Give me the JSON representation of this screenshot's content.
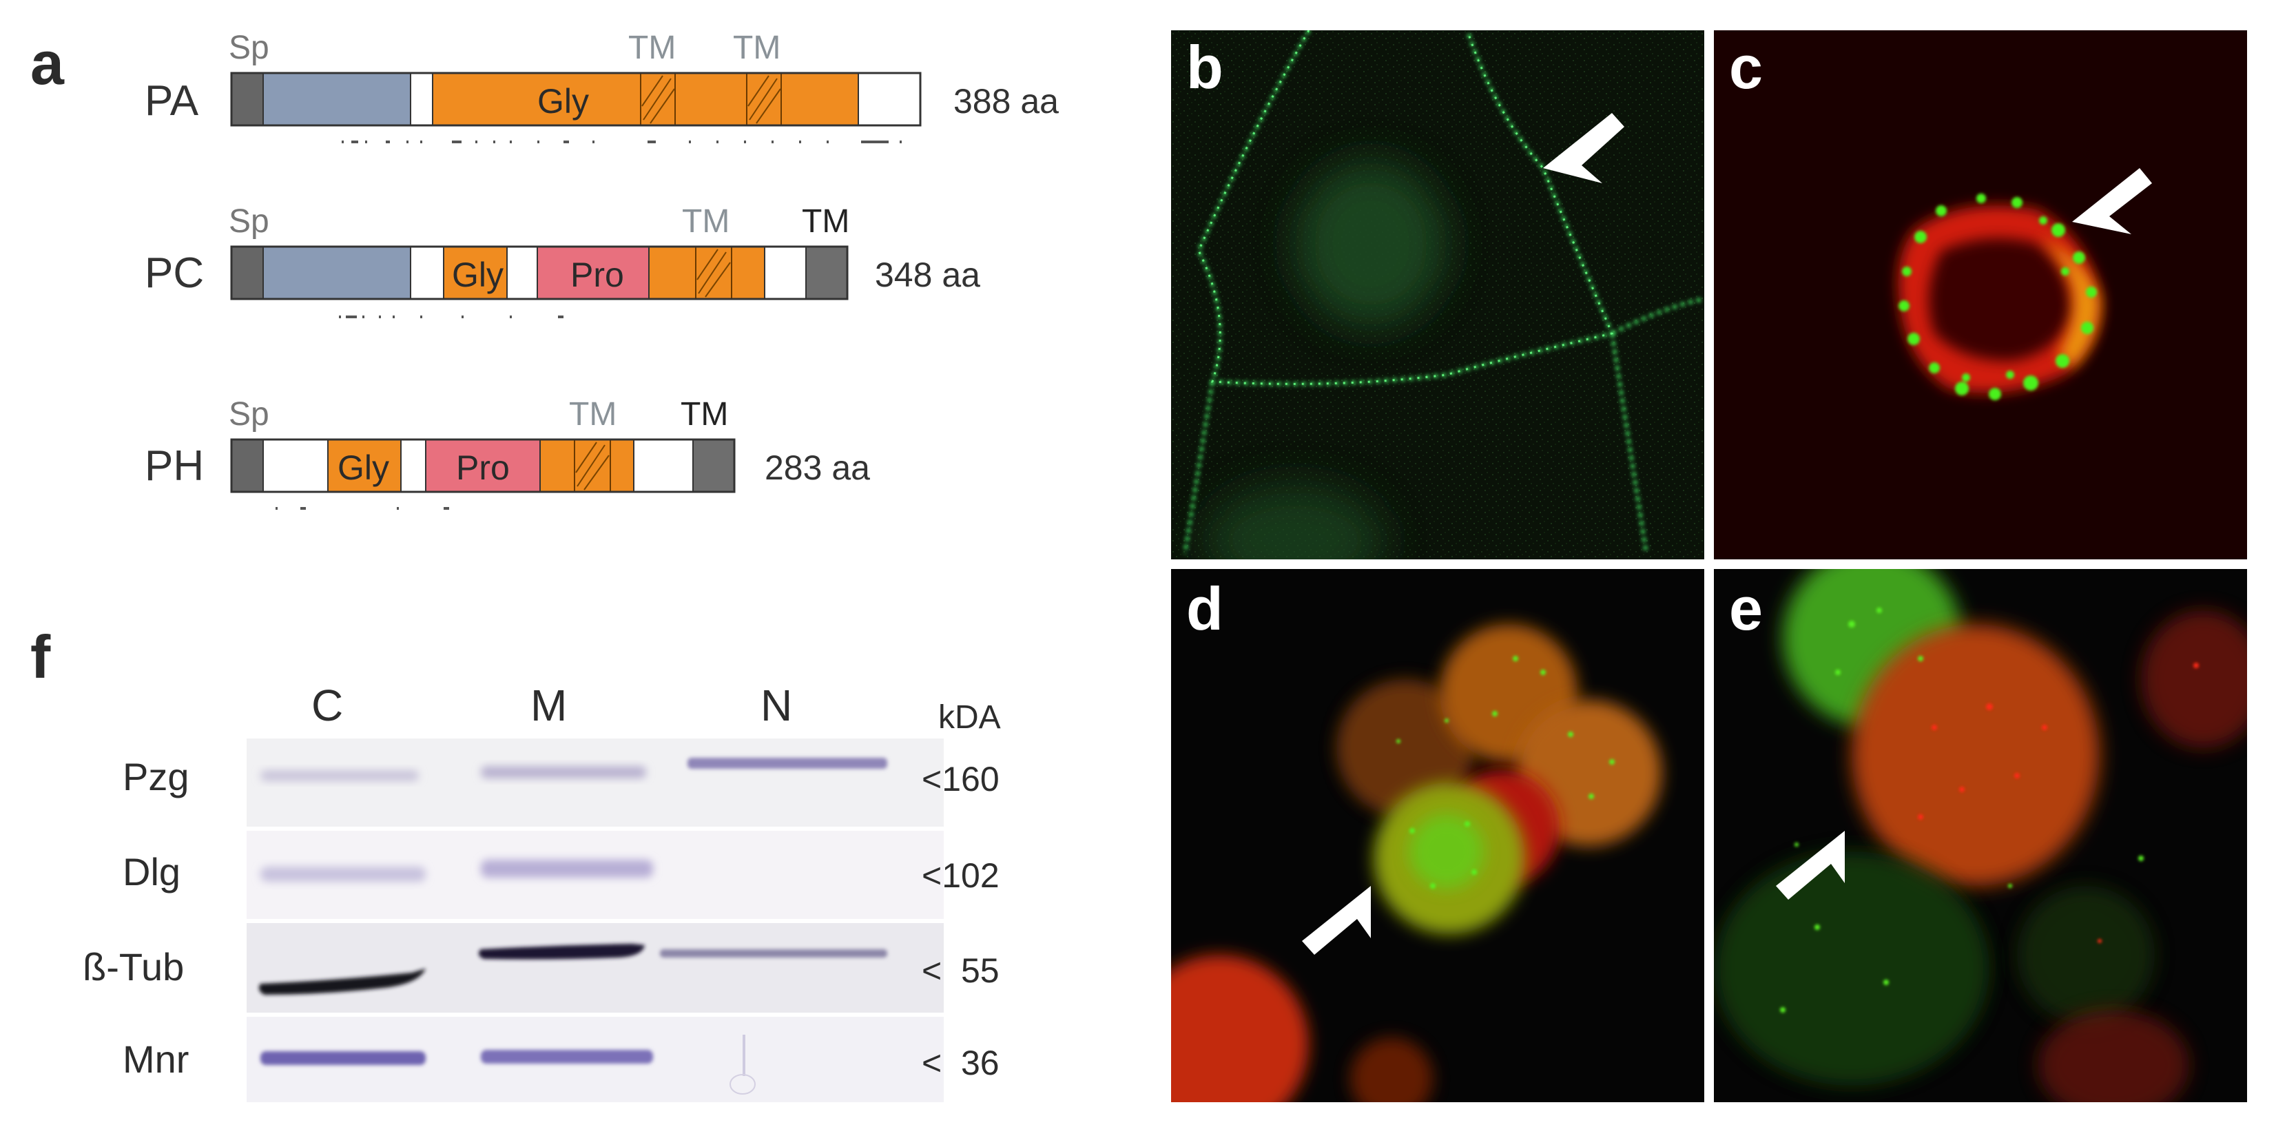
{
  "panel_a": {
    "letter": "a",
    "proteins": [
      {
        "name": "PA",
        "sp": "Sp",
        "tm_labels": [
          "TM",
          "TM"
        ],
        "segments": [
          "Gly"
        ],
        "length": "388 aa"
      },
      {
        "name": "PC",
        "sp": "Sp",
        "tm_labels": [
          "TM",
          "TM"
        ],
        "segments": [
          "Gly",
          "Pro"
        ],
        "length": "348 aa"
      },
      {
        "name": "PH",
        "sp": "Sp",
        "tm_labels": [
          "TM",
          "TM"
        ],
        "segments": [
          "Gly",
          "Pro"
        ],
        "length": "283 aa"
      }
    ],
    "colors": {
      "signal_peptide": "#666666",
      "blue_domain": "#8a9bb5",
      "gly": "#f08c20",
      "pro": "#e8707e",
      "tm_domain": "#6e6e6e"
    }
  },
  "micrographs": [
    {
      "letter": "b",
      "stain": "green",
      "content": "cell membrane outline"
    },
    {
      "letter": "c",
      "stain": "green/red",
      "content": "single cell with puncta"
    },
    {
      "letter": "d",
      "stain": "green/red",
      "content": "cluster of cells"
    },
    {
      "letter": "e",
      "stain": "green/red",
      "content": "cells with puncta"
    }
  ],
  "panel_f": {
    "letter": "f",
    "lanes": [
      "C",
      "M",
      "N"
    ],
    "unit": "kDA",
    "rows": [
      {
        "label": "Pzg",
        "marker": "<160"
      },
      {
        "label": "Dlg",
        "marker": "<102"
      },
      {
        "label": "ß-Tub",
        "marker": "<  55"
      },
      {
        "label": "Mnr",
        "marker": "<  36"
      }
    ]
  }
}
